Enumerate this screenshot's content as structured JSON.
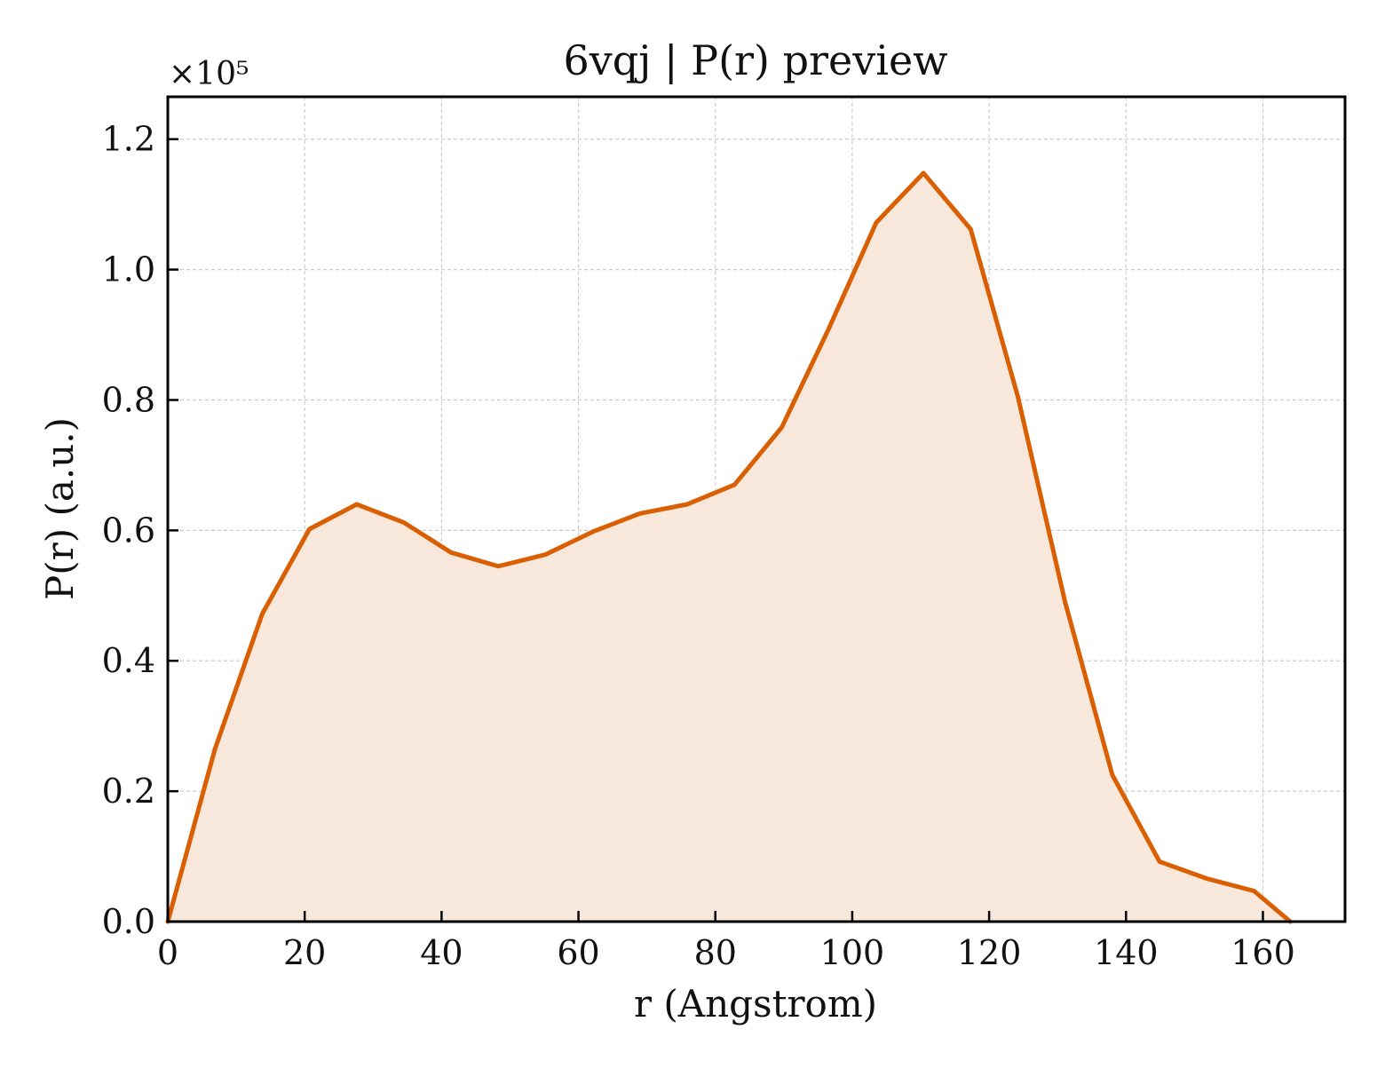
{
  "chart_data": {
    "type": "area",
    "title": "6vqj | P(r) preview",
    "xlabel": "r (Angstrom)",
    "ylabel": "P(r) (a.u.)",
    "y_multiplier_label": "×10⁵",
    "y_scale": 100000,
    "xlim": [
      0,
      172
    ],
    "ylim": [
      0,
      1.265
    ],
    "x_ticks": [
      0,
      20,
      40,
      60,
      80,
      100,
      120,
      140,
      160
    ],
    "x_tick_labels": [
      "0",
      "20",
      "40",
      "60",
      "80",
      "100",
      "120",
      "140",
      "160"
    ],
    "y_ticks": [
      0,
      0.2,
      0.4,
      0.6,
      0.8,
      1.0,
      1.2
    ],
    "y_tick_labels": [
      "0.0",
      "0.2",
      "0.4",
      "0.6",
      "0.8",
      "1.0",
      "1.2"
    ],
    "grid": true,
    "legend": "none",
    "series": [
      {
        "x": [
          0,
          6.9,
          13.8,
          20.7,
          27.6,
          34.5,
          41.4,
          48.3,
          55.2,
          62.1,
          69.0,
          75.9,
          82.8,
          89.7,
          96.6,
          103.5,
          110.4,
          117.3,
          124.2,
          131.1,
          138.0,
          144.9,
          151.8,
          158.7,
          164.0
        ],
        "y": [
          0.0,
          0.265,
          0.472,
          0.602,
          0.64,
          0.612,
          0.566,
          0.545,
          0.563,
          0.598,
          0.626,
          0.64,
          0.67,
          0.758,
          0.91,
          1.072,
          1.148,
          1.062,
          0.805,
          0.49,
          0.225,
          0.092,
          0.066,
          0.047,
          0.0
        ]
      }
    ],
    "colors": {
      "line": "#d95f02",
      "fill": "#f8e8dc",
      "grid": "#cccccc",
      "axis": "#000000"
    }
  }
}
